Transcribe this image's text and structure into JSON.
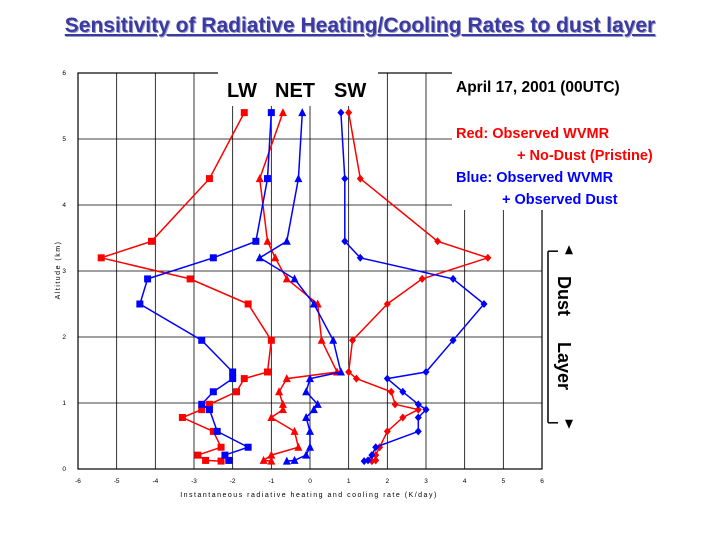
{
  "title": "Sensitivity of Radiative Heating/Cooling Rates to dust layer",
  "annotations": {
    "series_header": {
      "lw": "LW",
      "net": "NET",
      "sw": "SW"
    },
    "date": "April 17, 2001 (00UTC)",
    "red_line1": "Red:  Observed WVMR",
    "red_line2": "+ No-Dust (Pristine)",
    "blue_line1": "Blue: Observed WVMR",
    "blue_line2": "+ Observed Dust",
    "dust_layer_word1": "Dust",
    "dust_layer_word2": "Layer"
  },
  "colors": {
    "red": "#ff0000",
    "blue": "#0000ff"
  },
  "chart_data": {
    "type": "line",
    "xlabel": "Instantaneous radiative heating and cooling rate (K/day)",
    "ylabel": "Altitude (km)",
    "xlim": [
      -6,
      6
    ],
    "ylim": [
      0,
      6
    ],
    "x_ticks": [
      -6,
      -5,
      -4,
      -3,
      -2,
      -1,
      0,
      1,
      2,
      3,
      4,
      5,
      6
    ],
    "y_ticks": [
      0,
      1,
      2,
      3,
      4,
      5,
      6
    ],
    "grid": true,
    "dust_layer_range_km": [
      3.3,
      0.7
    ],
    "series": [
      {
        "id": "red_lw",
        "color": "#ff0000",
        "marker": "square",
        "points": [
          [
            -1.7,
            5.4
          ],
          [
            -2.6,
            4.4
          ],
          [
            -4.1,
            3.45
          ],
          [
            -5.4,
            3.2
          ],
          [
            -3.1,
            2.88
          ],
          [
            -1.6,
            2.5
          ],
          [
            -1.0,
            1.95
          ],
          [
            -1.1,
            1.47
          ],
          [
            -1.7,
            1.37
          ],
          [
            -1.9,
            1.17
          ],
          [
            -2.6,
            0.98
          ],
          [
            -2.8,
            0.9
          ],
          [
            -3.3,
            0.78
          ],
          [
            -2.5,
            0.57
          ],
          [
            -2.3,
            0.33
          ],
          [
            -2.9,
            0.21
          ],
          [
            -2.7,
            0.13
          ],
          [
            -2.3,
            0.12
          ]
        ]
      },
      {
        "id": "red_net",
        "color": "#ff0000",
        "marker": "triangle",
        "points": [
          [
            -0.7,
            5.4
          ],
          [
            -1.3,
            4.4
          ],
          [
            -1.1,
            3.45
          ],
          [
            -0.9,
            3.2
          ],
          [
            -0.6,
            2.88
          ],
          [
            0.2,
            2.5
          ],
          [
            0.3,
            1.95
          ],
          [
            0.7,
            1.47
          ],
          [
            -0.6,
            1.37
          ],
          [
            -0.8,
            1.17
          ],
          [
            -0.7,
            0.98
          ],
          [
            -0.7,
            0.9
          ],
          [
            -1.0,
            0.78
          ],
          [
            -0.4,
            0.57
          ],
          [
            -0.3,
            0.33
          ],
          [
            -1.0,
            0.21
          ],
          [
            -1.2,
            0.13
          ],
          [
            -1.0,
            0.12
          ]
        ]
      },
      {
        "id": "red_sw",
        "color": "#ff0000",
        "marker": "diamond",
        "points": [
          [
            1.0,
            5.4
          ],
          [
            1.3,
            4.4
          ],
          [
            3.3,
            3.45
          ],
          [
            4.6,
            3.2
          ],
          [
            2.9,
            2.88
          ],
          [
            2.0,
            2.5
          ],
          [
            1.1,
            1.95
          ],
          [
            1.0,
            1.47
          ],
          [
            1.2,
            1.37
          ],
          [
            2.1,
            1.17
          ],
          [
            2.2,
            0.98
          ],
          [
            2.8,
            0.9
          ],
          [
            2.4,
            0.78
          ],
          [
            2.0,
            0.57
          ],
          [
            1.8,
            0.33
          ],
          [
            1.7,
            0.21
          ],
          [
            1.7,
            0.13
          ],
          [
            1.6,
            0.12
          ]
        ]
      },
      {
        "id": "blue_lw",
        "color": "#0000ff",
        "marker": "square",
        "points": [
          [
            -1.0,
            5.4
          ],
          [
            -1.1,
            4.4
          ],
          [
            -1.4,
            3.45
          ],
          [
            -2.5,
            3.2
          ],
          [
            -4.2,
            2.88
          ],
          [
            -4.4,
            2.5
          ],
          [
            -2.8,
            1.95
          ],
          [
            -2.0,
            1.47
          ],
          [
            -2.0,
            1.37
          ],
          [
            -2.5,
            1.17
          ],
          [
            -2.8,
            0.98
          ],
          [
            -2.6,
            0.9
          ],
          [
            -2.4,
            0.57
          ],
          [
            -1.6,
            0.33
          ],
          [
            -2.2,
            0.21
          ],
          [
            -2.1,
            0.13
          ]
        ]
      },
      {
        "id": "blue_net",
        "color": "#0000ff",
        "marker": "triangle",
        "points": [
          [
            -0.2,
            5.4
          ],
          [
            -0.3,
            4.4
          ],
          [
            -0.6,
            3.45
          ],
          [
            -1.3,
            3.2
          ],
          [
            -0.4,
            2.88
          ],
          [
            0.1,
            2.5
          ],
          [
            0.6,
            1.95
          ],
          [
            0.8,
            1.47
          ],
          [
            0.0,
            1.37
          ],
          [
            -0.1,
            1.17
          ],
          [
            0.2,
            0.98
          ],
          [
            0.1,
            0.9
          ],
          [
            -0.1,
            0.78
          ],
          [
            0.0,
            0.57
          ],
          [
            0.0,
            0.33
          ],
          [
            -0.1,
            0.21
          ],
          [
            -0.4,
            0.13
          ],
          [
            -0.6,
            0.12
          ]
        ]
      },
      {
        "id": "blue_sw",
        "color": "#0000ff",
        "marker": "diamond",
        "points": [
          [
            0.8,
            5.4
          ],
          [
            0.9,
            4.4
          ],
          [
            0.9,
            3.45
          ],
          [
            1.3,
            3.2
          ],
          [
            3.7,
            2.88
          ],
          [
            4.5,
            2.5
          ],
          [
            3.7,
            1.95
          ],
          [
            3.0,
            1.47
          ],
          [
            2.0,
            1.37
          ],
          [
            2.4,
            1.17
          ],
          [
            2.8,
            0.98
          ],
          [
            3.0,
            0.9
          ],
          [
            2.8,
            0.78
          ],
          [
            2.8,
            0.57
          ],
          [
            1.7,
            0.33
          ],
          [
            1.6,
            0.21
          ],
          [
            1.5,
            0.13
          ],
          [
            1.4,
            0.12
          ]
        ]
      }
    ]
  }
}
